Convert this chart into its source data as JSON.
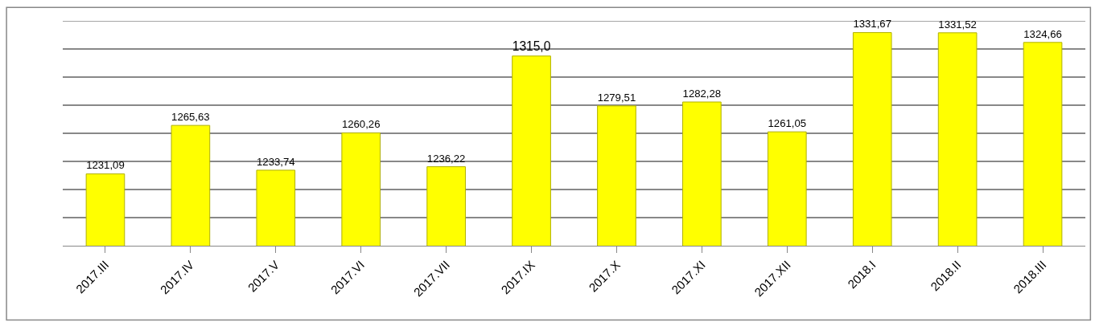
{
  "chart_data": {
    "type": "bar",
    "categories": [
      "2017.III",
      "2017.IV",
      "2017.V",
      "2017.VI",
      "2017.VII",
      "2017.IX",
      "2017.X",
      "2017.XI",
      "2017.XII",
      "2018.I",
      "2018.II",
      "2018.III"
    ],
    "values": [
      1231.09,
      1265.63,
      1233.74,
      1260.26,
      1236.22,
      1315.0,
      1279.51,
      1282.28,
      1261.05,
      1331.67,
      1331.52,
      1324.66
    ],
    "value_labels": [
      "1231,09",
      "1265,63",
      "1233,74",
      "1260,26",
      "1236,22",
      "1315,0",
      "1279,51",
      "1282,28",
      "1261,05",
      "1331,67",
      "1331,52",
      "1324,66"
    ],
    "color": "#ffff00",
    "ylim": [
      1180,
      1340
    ],
    "grid": "y",
    "tick_labels": "x"
  }
}
